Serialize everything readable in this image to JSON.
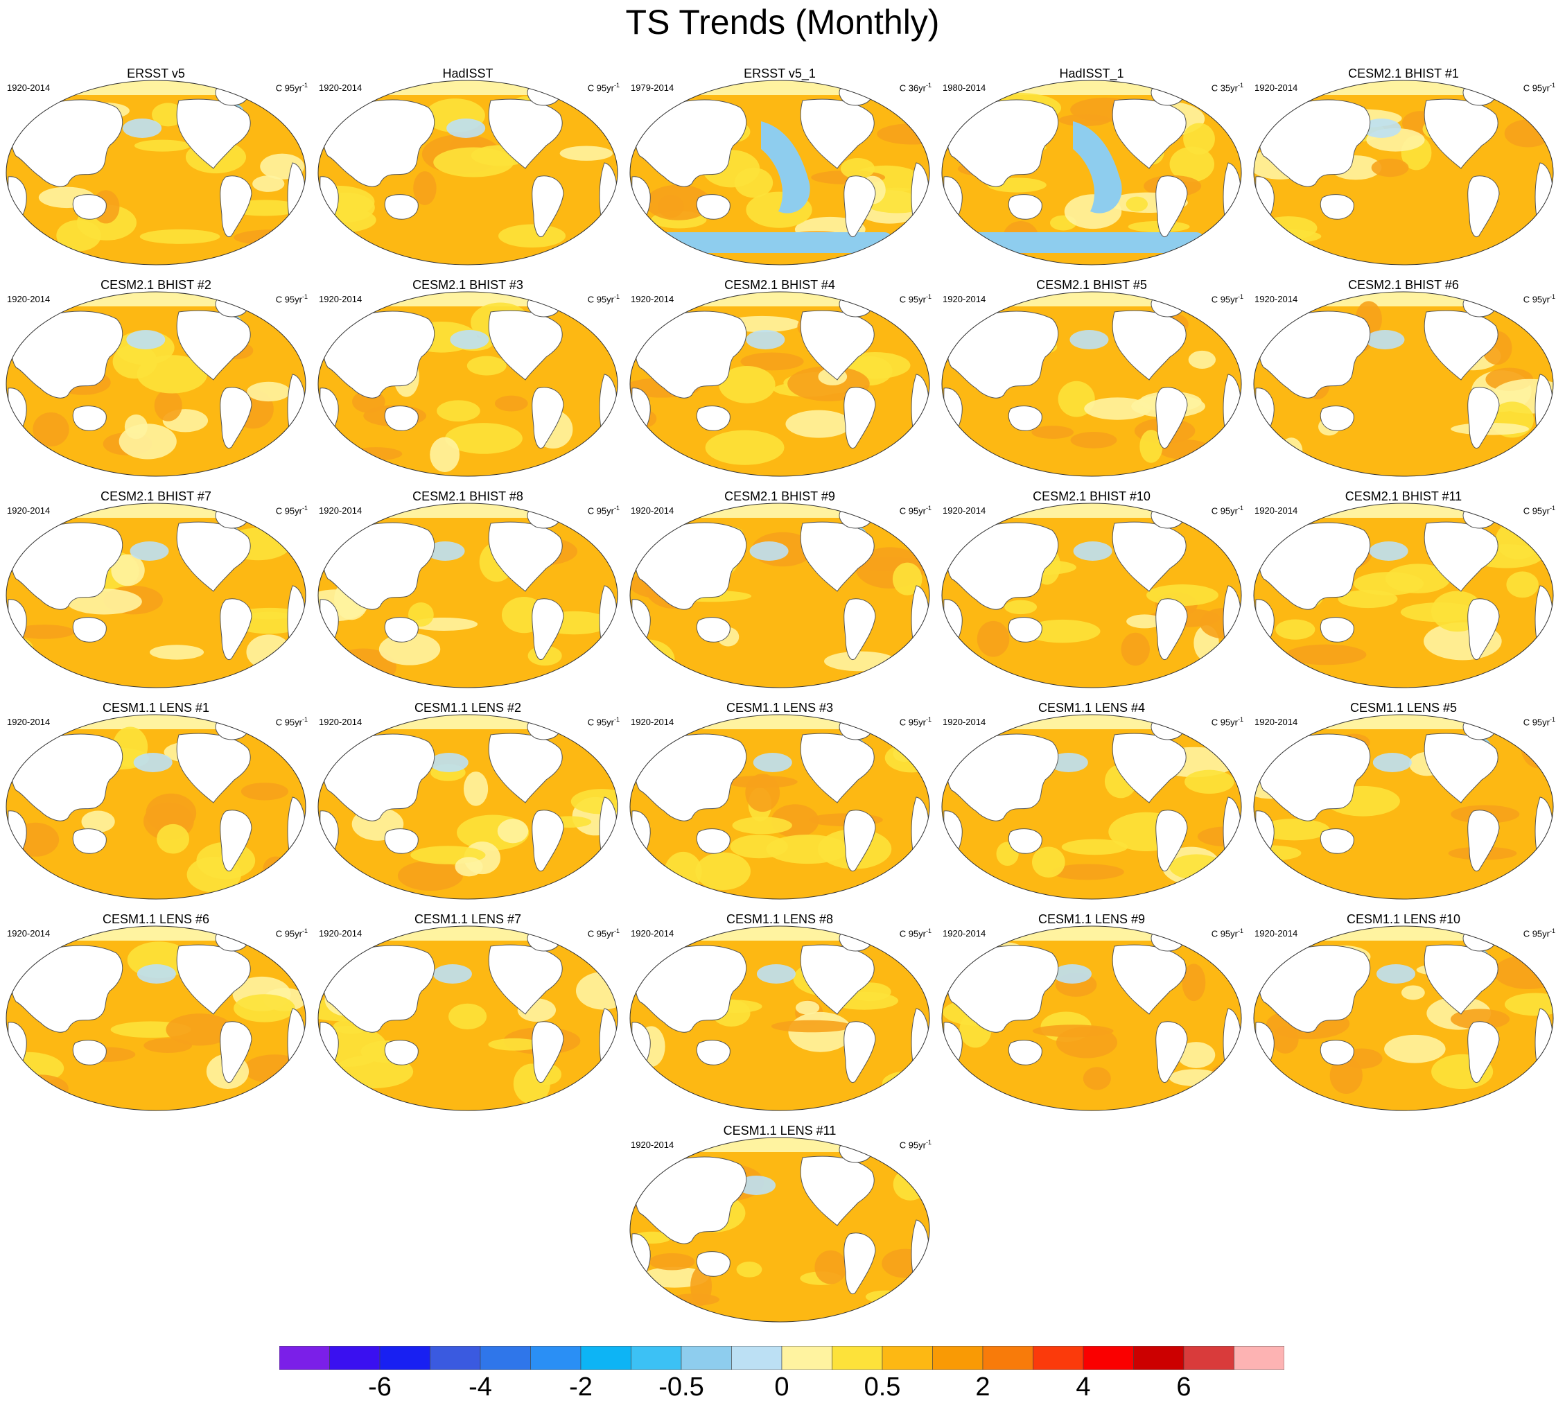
{
  "figure": {
    "title": "TS Trends (Monthly)"
  },
  "colors": {
    "land": "#ffffff",
    "coast": "#555555",
    "base_warm": "#fdb813",
    "light_warm": "#fde23a",
    "pale": "#fff3a0",
    "cool": "#bce0f4",
    "cold": "#8ecdee",
    "strong_warm": "#f7a21b"
  },
  "panels": [
    {
      "title": "ERSST v5",
      "period": "1920-2014",
      "units": "C 95yr",
      "exp": "-1"
    },
    {
      "title": "HadISST",
      "period": "1920-2014",
      "units": "C 95yr",
      "exp": "-1"
    },
    {
      "title": "ERSST v5_1",
      "period": "1979-2014",
      "units": "C 36yr",
      "exp": "-1"
    },
    {
      "title": "HadISST_1",
      "period": "1980-2014",
      "units": "C 35yr",
      "exp": "-1"
    },
    {
      "title": "CESM2.1 BHIST #1",
      "period": "1920-2014",
      "units": "C 95yr",
      "exp": "-1"
    },
    {
      "title": "CESM2.1 BHIST #2",
      "period": "1920-2014",
      "units": "C 95yr",
      "exp": "-1"
    },
    {
      "title": "CESM2.1 BHIST #3",
      "period": "1920-2014",
      "units": "C 95yr",
      "exp": "-1"
    },
    {
      "title": "CESM2.1 BHIST #4",
      "period": "1920-2014",
      "units": "C 95yr",
      "exp": "-1"
    },
    {
      "title": "CESM2.1 BHIST #5",
      "period": "1920-2014",
      "units": "C 95yr",
      "exp": "-1"
    },
    {
      "title": "CESM2.1 BHIST #6",
      "period": "1920-2014",
      "units": "C 95yr",
      "exp": "-1"
    },
    {
      "title": "CESM2.1 BHIST #7",
      "period": "1920-2014",
      "units": "C 95yr",
      "exp": "-1"
    },
    {
      "title": "CESM2.1 BHIST #8",
      "period": "1920-2014",
      "units": "C 95yr",
      "exp": "-1"
    },
    {
      "title": "CESM2.1 BHIST #9",
      "period": "1920-2014",
      "units": "C 95yr",
      "exp": "-1"
    },
    {
      "title": "CESM2.1 BHIST #10",
      "period": "1920-2014",
      "units": "C 95yr",
      "exp": "-1"
    },
    {
      "title": "CESM2.1 BHIST #11",
      "period": "1920-2014",
      "units": "C 95yr",
      "exp": "-1"
    },
    {
      "title": "CESM1.1 LENS #1",
      "period": "1920-2014",
      "units": "C 95yr",
      "exp": "-1"
    },
    {
      "title": "CESM1.1 LENS #2",
      "period": "1920-2014",
      "units": "C 95yr",
      "exp": "-1"
    },
    {
      "title": "CESM1.1 LENS #3",
      "period": "1920-2014",
      "units": "C 95yr",
      "exp": "-1"
    },
    {
      "title": "CESM1.1 LENS #4",
      "period": "1920-2014",
      "units": "C 95yr",
      "exp": "-1"
    },
    {
      "title": "CESM1.1 LENS #5",
      "period": "1920-2014",
      "units": "C 95yr",
      "exp": "-1"
    },
    {
      "title": "CESM1.1 LENS #6",
      "period": "1920-2014",
      "units": "C 95yr",
      "exp": "-1"
    },
    {
      "title": "CESM1.1 LENS #7",
      "period": "1920-2014",
      "units": "C 95yr",
      "exp": "-1"
    },
    {
      "title": "CESM1.1 LENS #8",
      "period": "1920-2014",
      "units": "C 95yr",
      "exp": "-1"
    },
    {
      "title": "CESM1.1 LENS #9",
      "period": "1920-2014",
      "units": "C 95yr",
      "exp": "-1"
    },
    {
      "title": "CESM1.1 LENS #10",
      "period": "1920-2014",
      "units": "C 95yr",
      "exp": "-1"
    },
    {
      "title": "CESM1.1 LENS #11",
      "period": "1920-2014",
      "units": "C 95yr",
      "exp": "-1"
    }
  ],
  "colorbar": {
    "colors": [
      "#7b1fe8",
      "#3a10f0",
      "#1820f2",
      "#3a5ae0",
      "#2f76ea",
      "#2a8ff5",
      "#0db4f5",
      "#3cc1f5",
      "#8ecdee",
      "#bce0f4",
      "#fff3a0",
      "#fde23a",
      "#fdb813",
      "#f99a05",
      "#f87b0a",
      "#fb3a0b",
      "#fa0000",
      "#cc0000",
      "#d93b3b",
      "#fdb3b3"
    ],
    "labels": [
      {
        "text": "-6",
        "index": 2
      },
      {
        "text": "-4",
        "index": 4
      },
      {
        "text": "-2",
        "index": 6
      },
      {
        "text": "-0.5",
        "index": 8
      },
      {
        "text": "0",
        "index": 10
      },
      {
        "text": "0.5",
        "index": 12
      },
      {
        "text": "2",
        "index": 14
      },
      {
        "text": "4",
        "index": 16
      },
      {
        "text": "6",
        "index": 18
      }
    ]
  }
}
